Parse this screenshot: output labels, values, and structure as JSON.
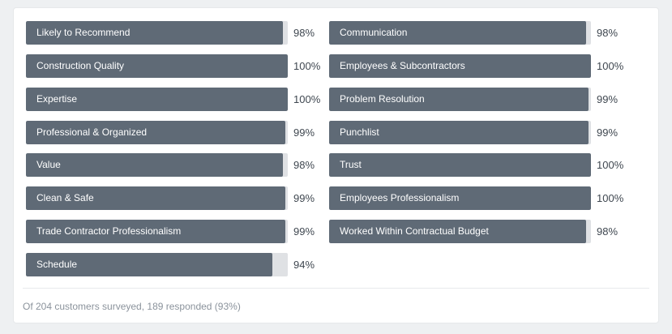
{
  "left_items": [
    {
      "label": "Likely to Recommend",
      "percent_text": "98%",
      "value": 98
    },
    {
      "label": "Construction Quality",
      "percent_text": "100%",
      "value": 100
    },
    {
      "label": "Expertise",
      "percent_text": "100%",
      "value": 100
    },
    {
      "label": "Professional & Organized",
      "percent_text": "99%",
      "value": 99
    },
    {
      "label": "Value",
      "percent_text": "98%",
      "value": 98
    },
    {
      "label": "Clean & Safe",
      "percent_text": "99%",
      "value": 99
    },
    {
      "label": "Trade Contractor Professionalism",
      "percent_text": "99%",
      "value": 99
    },
    {
      "label": "Schedule",
      "percent_text": "94%",
      "value": 94
    }
  ],
  "right_items": [
    {
      "label": "Communication",
      "percent_text": "98%",
      "value": 98
    },
    {
      "label": "Employees & Subcontractors",
      "percent_text": "100%",
      "value": 100
    },
    {
      "label": "Problem Resolution",
      "percent_text": "99%",
      "value": 99
    },
    {
      "label": "Punchlist",
      "percent_text": "99%",
      "value": 99
    },
    {
      "label": "Trust",
      "percent_text": "100%",
      "value": 100
    },
    {
      "label": "Employees Professionalism",
      "percent_text": "100%",
      "value": 100
    },
    {
      "label": "Worked Within Contractual Budget",
      "percent_text": "98%",
      "value": 98
    }
  ],
  "footer_text": "Of 204 customers surveyed, 189 responded (93%)",
  "colors": {
    "fill": "#5f6a76",
    "track": "#dfe1e4"
  }
}
